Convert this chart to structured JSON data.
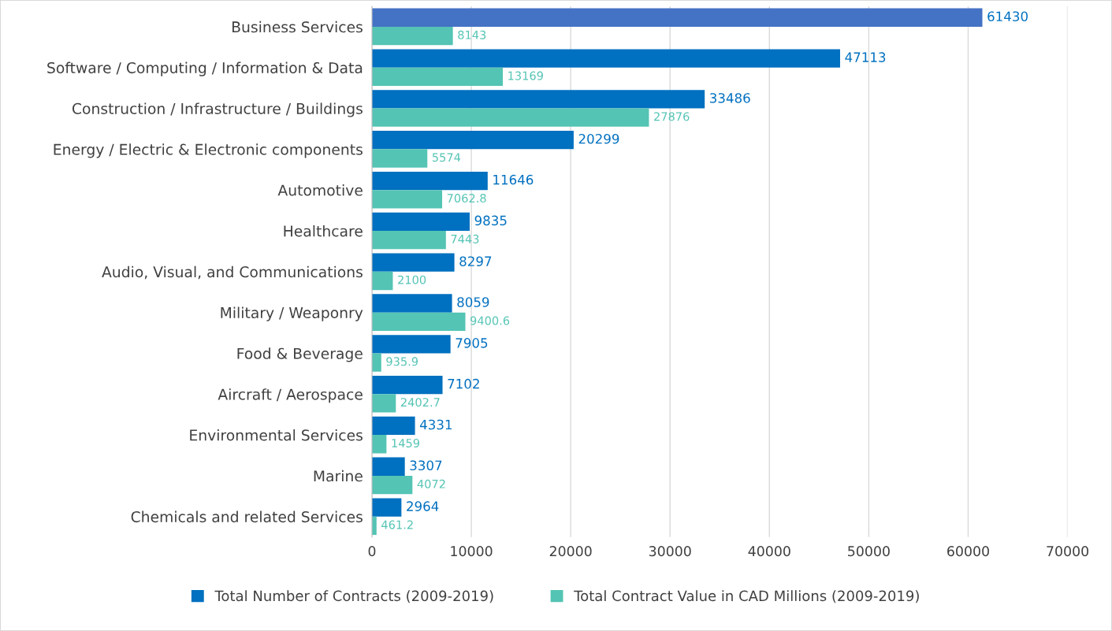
{
  "chart_data": {
    "type": "bar",
    "orientation": "horizontal",
    "categories": [
      "Business Services",
      "Software / Computing / Information & Data",
      "Construction / Infrastructure / Buildings",
      "Energy / Electric & Electronic components",
      "Automotive",
      "Healthcare",
      "Audio, Visual, and Communications",
      "Military / Weaponry",
      "Food & Beverage",
      "Aircraft / Aerospace",
      "Environmental Services",
      "Marine",
      "Chemicals and related Services"
    ],
    "series": [
      {
        "name": "Total Number of Contracts (2009-2019)",
        "color": "#0070c0",
        "colors": [
          "#4472c4",
          "#0070c0",
          "#0070c0",
          "#0070c0",
          "#0070c0",
          "#0070c0",
          "#0070c0",
          "#0070c0",
          "#0070c0",
          "#0070c0",
          "#0070c0",
          "#0070c0",
          "#0070c0"
        ],
        "values": [
          61430,
          47113,
          33486,
          20299,
          11646,
          9835,
          8297,
          8059,
          7905,
          7102,
          4331,
          3307,
          2964
        ]
      },
      {
        "name": "Total Contract Value in CAD Millions (2009-2019)",
        "color": "#54c4b4",
        "values": [
          8143,
          13169,
          27876,
          5574,
          7062.8,
          7443,
          2100,
          9400.6,
          935.9,
          2402.7,
          1459,
          4072,
          461.2
        ]
      }
    ],
    "xlim": [
      0,
      70000
    ],
    "xticks": [
      0,
      10000,
      20000,
      30000,
      40000,
      50000,
      60000,
      70000
    ],
    "grid": "x",
    "legend": "bottom",
    "data_labels": true
  }
}
